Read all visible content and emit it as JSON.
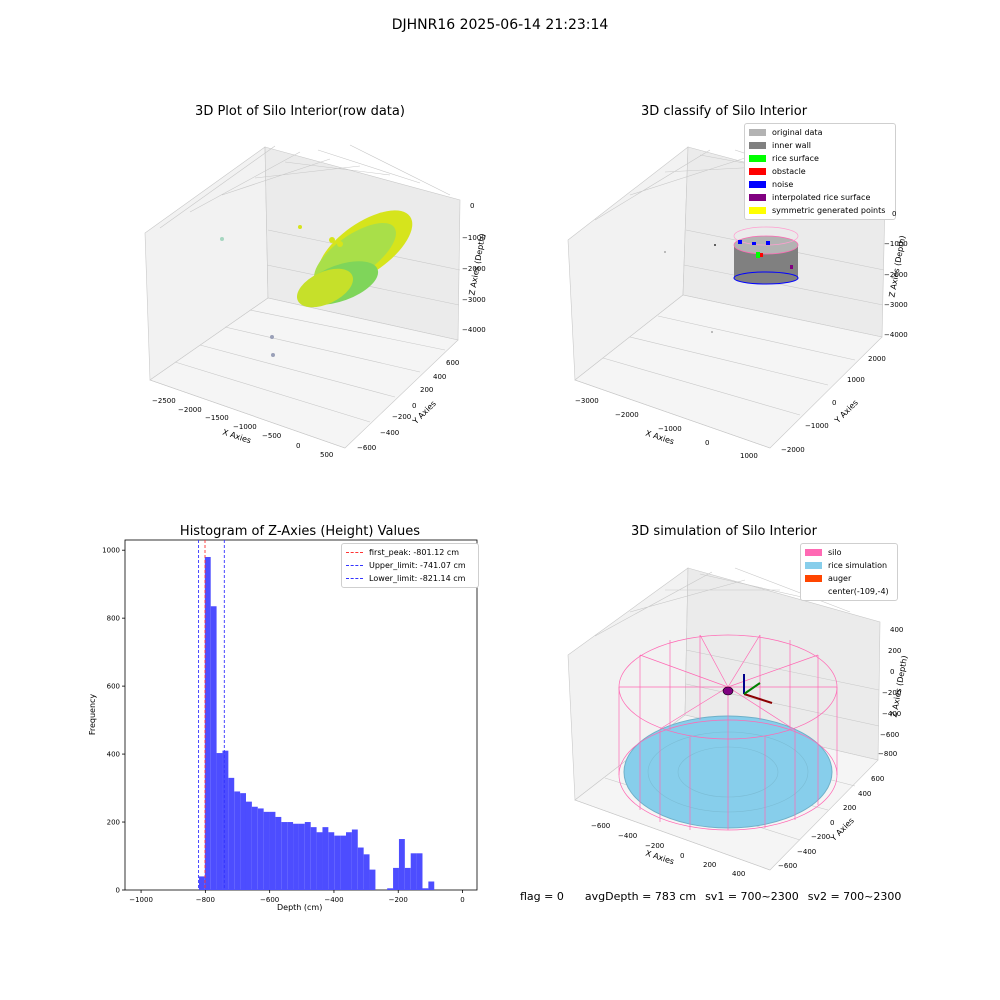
{
  "suptitle": "DJHNR16 2025-06-14 21:23:14",
  "chart_data": [
    {
      "type": "scatter",
      "title": "3D Plot of Silo Interior(row data)",
      "xlabel": "X Axies",
      "ylabel": "Y Axies",
      "zlabel": "Z Axies (Depth)",
      "x_ticks": [
        "−2500",
        "−2000",
        "−1500",
        "−1000",
        "−500",
        "0",
        "500"
      ],
      "y_ticks": [
        "−600",
        "−400",
        "−200",
        "0",
        "200",
        "400",
        "600"
      ],
      "z_ticks": [
        "0",
        "−1000",
        "−2000",
        "−3000",
        "−4000"
      ],
      "colors": {
        "surface_a": "#7fd55a",
        "surface_b": "#d6e41c",
        "outlier": "#9aa0b8"
      }
    },
    {
      "type": "scatter",
      "title": "3D classify of Silo Interior",
      "xlabel": "X Axies",
      "ylabel": "Y Axies",
      "zlabel": "Z Axies (Depth)",
      "x_ticks": [
        "−3000",
        "−2000",
        "−1000",
        "0",
        "1000"
      ],
      "y_ticks": [
        "−2000",
        "−1000",
        "0",
        "1000",
        "2000"
      ],
      "z_ticks": [
        "0",
        "−1000",
        "−2000",
        "−3000",
        "−4000"
      ],
      "legend": [
        {
          "label": "original data",
          "color": "#b3b3b3"
        },
        {
          "label": "inner wall",
          "color": "#808080"
        },
        {
          "label": "rice surface",
          "color": "#00ff00"
        },
        {
          "label": "obstacle",
          "color": "#ff0000"
        },
        {
          "label": "noise",
          "color": "#0000ff"
        },
        {
          "label": "interpolated rice surface",
          "color": "#800080"
        },
        {
          "label": "symmetric generated points",
          "color": "#ffff00"
        }
      ]
    },
    {
      "type": "histogram",
      "title": "Histogram of Z-Axies (Height) Values",
      "xlabel": "Depth (cm)",
      "ylabel": "Frequency",
      "xlim": [
        -1050,
        45
      ],
      "ylim": [
        0,
        1030
      ],
      "x_ticks": [
        -1000,
        -800,
        -600,
        -400,
        -200,
        0
      ],
      "x_tick_labels": [
        "−1000",
        "−800",
        "−600",
        "−400",
        "−200",
        "0"
      ],
      "y_ticks": [
        0,
        200,
        400,
        600,
        800,
        1000
      ],
      "bin_edges_start": -820,
      "bin_width": 18.3,
      "values": [
        40,
        980,
        835,
        403,
        410,
        330,
        290,
        285,
        260,
        245,
        240,
        230,
        230,
        215,
        200,
        200,
        195,
        195,
        200,
        185,
        170,
        185,
        170,
        160,
        160,
        170,
        178,
        125,
        105,
        60,
        0,
        0,
        5,
        65,
        150,
        65,
        108,
        108,
        5,
        25
      ],
      "bar_color": "#4d4dff",
      "vlines": [
        {
          "label": "first_peak: -801.12 cm",
          "x": -801.12,
          "color": "#ff3333"
        },
        {
          "label": "Upper_limit: -741.07 cm",
          "x": -741.07,
          "color": "#3333ff"
        },
        {
          "label": "Lower_limit: -821.14 cm",
          "x": -821.14,
          "color": "#3333ff"
        }
      ]
    },
    {
      "type": "3d-surface",
      "title": "3D simulation of Silo Interior",
      "xlabel": "X Axies",
      "ylabel": "Y Axies",
      "zlabel": "Z Axies (Depth)",
      "x_ticks": [
        "−600",
        "−400",
        "−200",
        "0",
        "200",
        "400"
      ],
      "y_ticks": [
        "−600",
        "−400",
        "−200",
        "0",
        "200",
        "400",
        "600"
      ],
      "z_ticks": [
        "400",
        "200",
        "0",
        "−200",
        "−400",
        "−600",
        "−800"
      ],
      "legend": [
        {
          "label": "silo",
          "color": "#ff69b4"
        },
        {
          "label": "rice simulation",
          "color": "#87ceeb"
        },
        {
          "label": "auger",
          "color": "#ff4500"
        },
        {
          "label": "center(-109,-4)",
          "color": ""
        }
      ]
    }
  ],
  "footer": {
    "flag": "flag = 0",
    "avg": "avgDepth = 783 cm",
    "sv1": "sv1 = 700~2300",
    "sv2": "sv2 = 700~2300"
  }
}
